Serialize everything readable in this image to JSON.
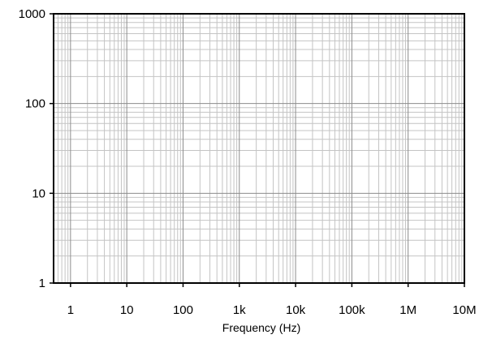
{
  "chart_data": {
    "type": "line",
    "title": "",
    "xlabel": "Frequency (Hz)",
    "ylabel": "",
    "x_scale": "log",
    "y_scale": "log",
    "xlim": [
      0.5,
      10000000
    ],
    "ylim": [
      1,
      1000
    ],
    "x_ticks": [
      {
        "value": 1,
        "label": "1"
      },
      {
        "value": 10,
        "label": "10"
      },
      {
        "value": 100,
        "label": "100"
      },
      {
        "value": 1000,
        "label": "1k"
      },
      {
        "value": 10000,
        "label": "10k"
      },
      {
        "value": 100000,
        "label": "100k"
      },
      {
        "value": 1000000,
        "label": "1M"
      },
      {
        "value": 10000000,
        "label": "10M"
      }
    ],
    "y_ticks": [
      {
        "value": 1,
        "label": "1"
      },
      {
        "value": 10,
        "label": "10"
      },
      {
        "value": 100,
        "label": "100"
      },
      {
        "value": 1000,
        "label": "1000"
      }
    ],
    "grid": true,
    "minor_grid": true,
    "series": []
  },
  "colors": {
    "frame": "#000000",
    "major_grid": "#8c8c8c",
    "minor_grid": "#c4c4c4",
    "text": "#000000",
    "background": "#ffffff"
  }
}
